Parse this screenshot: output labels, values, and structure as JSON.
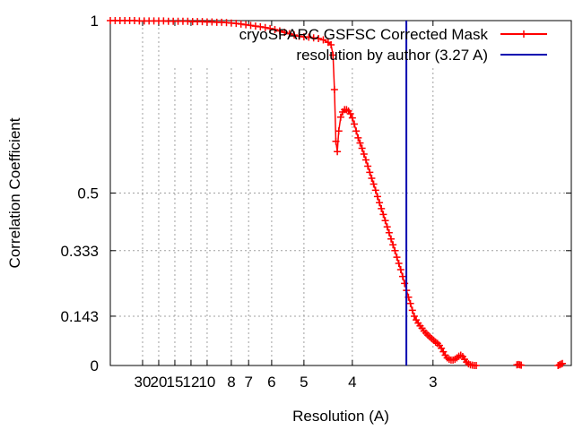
{
  "chart_data": {
    "type": "line",
    "title": "",
    "xlabel": "Resolution (A)",
    "ylabel": "Correlation Coefficient",
    "x_axis": "inverse resolution (1/A)",
    "xlim_resolution_A": [
      null,
      2.1
    ],
    "ylim": [
      0,
      1
    ],
    "grid": true,
    "legend_position": "top-right",
    "x_ticks": [
      {
        "resolution": 30,
        "label": "30"
      },
      {
        "resolution": 20,
        "label": "20"
      },
      {
        "resolution": 15,
        "label": "15"
      },
      {
        "resolution": 12,
        "label": "12"
      },
      {
        "resolution": 10,
        "label": "10"
      },
      {
        "resolution": 8,
        "label": "8"
      },
      {
        "resolution": 7,
        "label": "7"
      },
      {
        "resolution": 6,
        "label": "6"
      },
      {
        "resolution": 5,
        "label": "5"
      },
      {
        "resolution": 4,
        "label": "4"
      },
      {
        "resolution": 3,
        "label": "3"
      }
    ],
    "y_ticks": [
      {
        "value": 0,
        "label": "0"
      },
      {
        "value": 0.143,
        "label": "0.143"
      },
      {
        "value": 0.333,
        "label": "0.333"
      },
      {
        "value": 0.5,
        "label": "0.5"
      },
      {
        "value": 1,
        "label": "1"
      }
    ],
    "series": [
      {
        "name": "cryoSPARC GSFSC Corrected Mask",
        "color": "#ff0000",
        "marker": "plus",
        "points": [
          [
            0.0,
            1.0
          ],
          [
            0.005,
            1.0
          ],
          [
            0.01,
            1.0
          ],
          [
            0.015,
            1.0
          ],
          [
            0.02,
            1.0
          ],
          [
            0.025,
            1.0
          ],
          [
            0.03,
            0.999
          ],
          [
            0.035,
            0.999
          ],
          [
            0.04,
            0.999
          ],
          [
            0.045,
            0.999
          ],
          [
            0.05,
            0.999
          ],
          [
            0.055,
            0.999
          ],
          [
            0.06,
            0.998
          ],
          [
            0.065,
            0.998
          ],
          [
            0.07,
            0.998
          ],
          [
            0.075,
            0.998
          ],
          [
            0.08,
            0.998
          ],
          [
            0.085,
            0.997
          ],
          [
            0.09,
            0.997
          ],
          [
            0.095,
            0.997
          ],
          [
            0.1,
            0.996
          ],
          [
            0.105,
            0.996
          ],
          [
            0.11,
            0.995
          ],
          [
            0.115,
            0.995
          ],
          [
            0.12,
            0.994
          ],
          [
            0.125,
            0.993
          ],
          [
            0.13,
            0.992
          ],
          [
            0.135,
            0.99
          ],
          [
            0.14,
            0.988
          ],
          [
            0.145,
            0.986
          ],
          [
            0.15,
            0.984
          ],
          [
            0.155,
            0.982
          ],
          [
            0.16,
            0.98
          ],
          [
            0.165,
            0.977
          ],
          [
            0.17,
            0.974
          ],
          [
            0.175,
            0.97
          ],
          [
            0.18,
            0.966
          ],
          [
            0.185,
            0.962
          ],
          [
            0.19,
            0.958
          ],
          [
            0.195,
            0.955
          ],
          [
            0.2,
            0.953
          ],
          [
            0.205,
            0.952
          ],
          [
            0.21,
            0.95
          ],
          [
            0.215,
            0.948
          ],
          [
            0.22,
            0.944
          ],
          [
            0.225,
            0.937
          ],
          [
            0.228,
            0.93
          ],
          [
            0.23,
            0.9
          ],
          [
            0.2315,
            0.8
          ],
          [
            0.233,
            0.65
          ],
          [
            0.2345,
            0.62
          ],
          [
            0.236,
            0.68
          ],
          [
            0.238,
            0.72
          ],
          [
            0.24,
            0.735
          ],
          [
            0.242,
            0.742
          ],
          [
            0.244,
            0.742
          ],
          [
            0.246,
            0.738
          ],
          [
            0.248,
            0.73
          ],
          [
            0.25,
            0.718
          ],
          [
            0.252,
            0.7
          ],
          [
            0.254,
            0.68
          ],
          [
            0.256,
            0.66
          ],
          [
            0.258,
            0.645
          ],
          [
            0.26,
            0.63
          ],
          [
            0.262,
            0.613
          ],
          [
            0.264,
            0.596
          ],
          [
            0.266,
            0.578
          ],
          [
            0.268,
            0.56
          ],
          [
            0.27,
            0.543
          ],
          [
            0.272,
            0.526
          ],
          [
            0.274,
            0.508
          ],
          [
            0.276,
            0.49
          ],
          [
            0.278,
            0.472
          ],
          [
            0.28,
            0.455
          ],
          [
            0.282,
            0.438
          ],
          [
            0.284,
            0.42
          ],
          [
            0.286,
            0.402
          ],
          [
            0.288,
            0.385
          ],
          [
            0.29,
            0.367
          ],
          [
            0.292,
            0.35
          ],
          [
            0.294,
            0.333
          ],
          [
            0.296,
            0.314
          ],
          [
            0.298,
            0.296
          ],
          [
            0.3,
            0.278
          ],
          [
            0.302,
            0.258
          ],
          [
            0.304,
            0.238
          ],
          [
            0.306,
            0.218
          ],
          [
            0.308,
            0.198
          ],
          [
            0.31,
            0.18
          ],
          [
            0.312,
            0.16
          ],
          [
            0.314,
            0.143
          ],
          [
            0.316,
            0.132
          ],
          [
            0.318,
            0.123
          ],
          [
            0.32,
            0.115
          ],
          [
            0.322,
            0.108
          ],
          [
            0.324,
            0.1
          ],
          [
            0.326,
            0.094
          ],
          [
            0.328,
            0.088
          ],
          [
            0.33,
            0.083
          ],
          [
            0.332,
            0.078
          ],
          [
            0.334,
            0.073
          ],
          [
            0.336,
            0.068
          ],
          [
            0.338,
            0.064
          ],
          [
            0.34,
            0.058
          ],
          [
            0.342,
            0.05
          ],
          [
            0.344,
            0.04
          ],
          [
            0.346,
            0.03
          ],
          [
            0.348,
            0.022
          ],
          [
            0.35,
            0.018
          ],
          [
            0.352,
            0.016
          ],
          [
            0.354,
            0.016
          ],
          [
            0.356,
            0.018
          ],
          [
            0.358,
            0.022
          ],
          [
            0.36,
            0.027
          ],
          [
            0.362,
            0.03
          ],
          [
            0.364,
            0.026
          ],
          [
            0.366,
            0.018
          ],
          [
            0.368,
            0.01
          ],
          [
            0.37,
            0.005
          ],
          [
            0.372,
            0.002
          ],
          [
            0.374,
            0.001
          ],
          [
            0.376,
            0.0
          ],
          [
            0.378,
            0.0
          ],
          [
            0.42,
            0.002
          ],
          [
            0.4215,
            0.003
          ],
          [
            0.423,
            0.002
          ],
          [
            0.4245,
            0.001
          ],
          [
            0.4625,
            0.0
          ],
          [
            0.464,
            0.002
          ],
          [
            0.4655,
            0.004
          ],
          [
            0.467,
            0.006
          ]
        ]
      },
      {
        "name": "resolution by author (3.27 A)",
        "color": "#0000b0",
        "resolution": 3.27
      }
    ]
  }
}
